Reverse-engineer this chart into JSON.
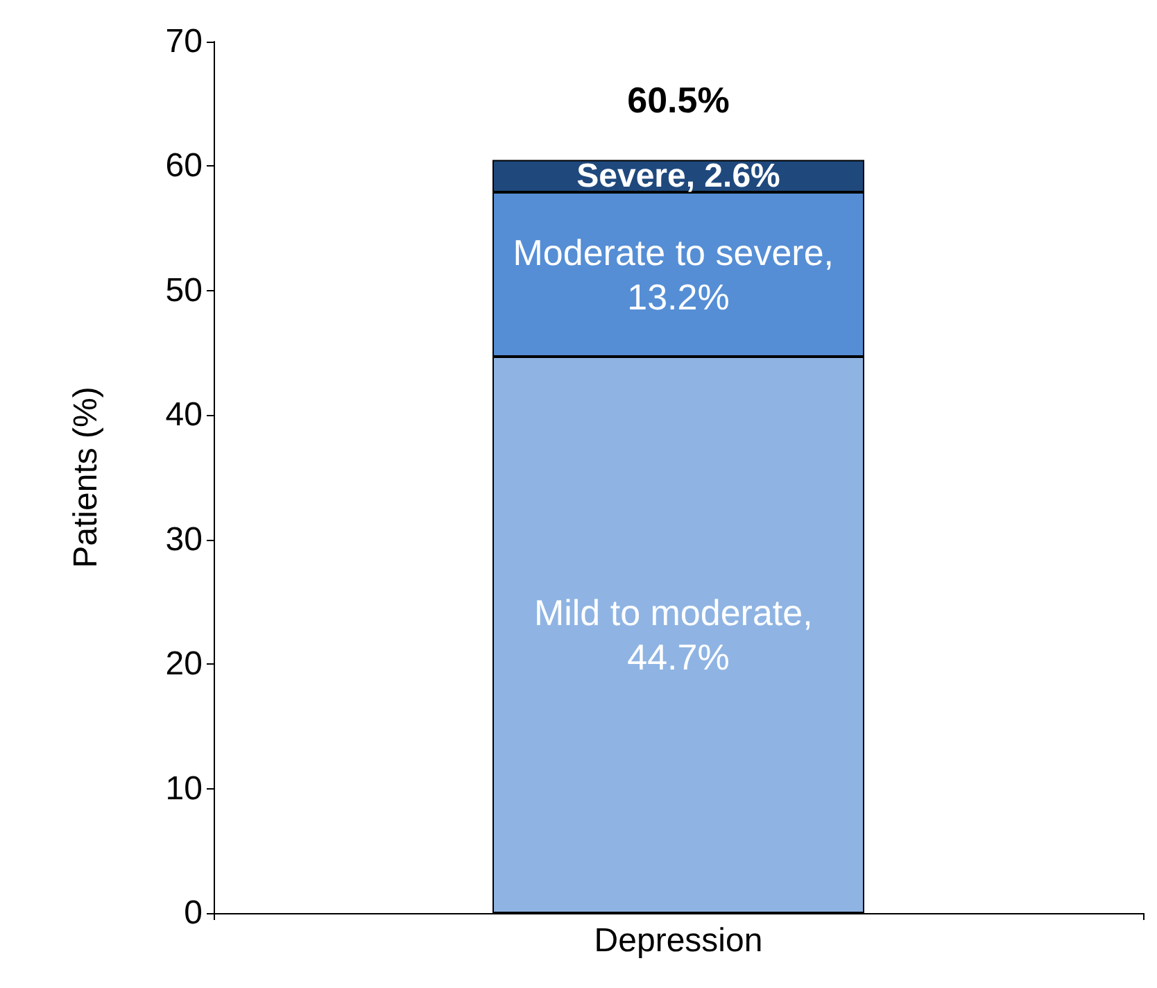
{
  "chart_data": {
    "type": "bar",
    "stacked": true,
    "ylabel": "Patients (%)",
    "categories": [
      "Depression"
    ],
    "series": [
      {
        "color": "#8fb4e3",
        "values": [
          44.7
        ],
        "value_labels": [
          "Mild to moderate, 44.7%"
        ]
      },
      {
        "color": "#558ed5",
        "values": [
          13.2
        ],
        "value_labels": [
          "Moderate to severe, 13.2%"
        ]
      },
      {
        "color": "#1f497d",
        "values": [
          2.6
        ],
        "value_labels": [
          "Severe, 2.6%"
        ]
      }
    ],
    "totals": [
      "60.5%"
    ],
    "ylim": [
      0,
      70
    ],
    "yticks": [
      0,
      10,
      20,
      30,
      40,
      50,
      60,
      70
    ],
    "grid": false
  }
}
